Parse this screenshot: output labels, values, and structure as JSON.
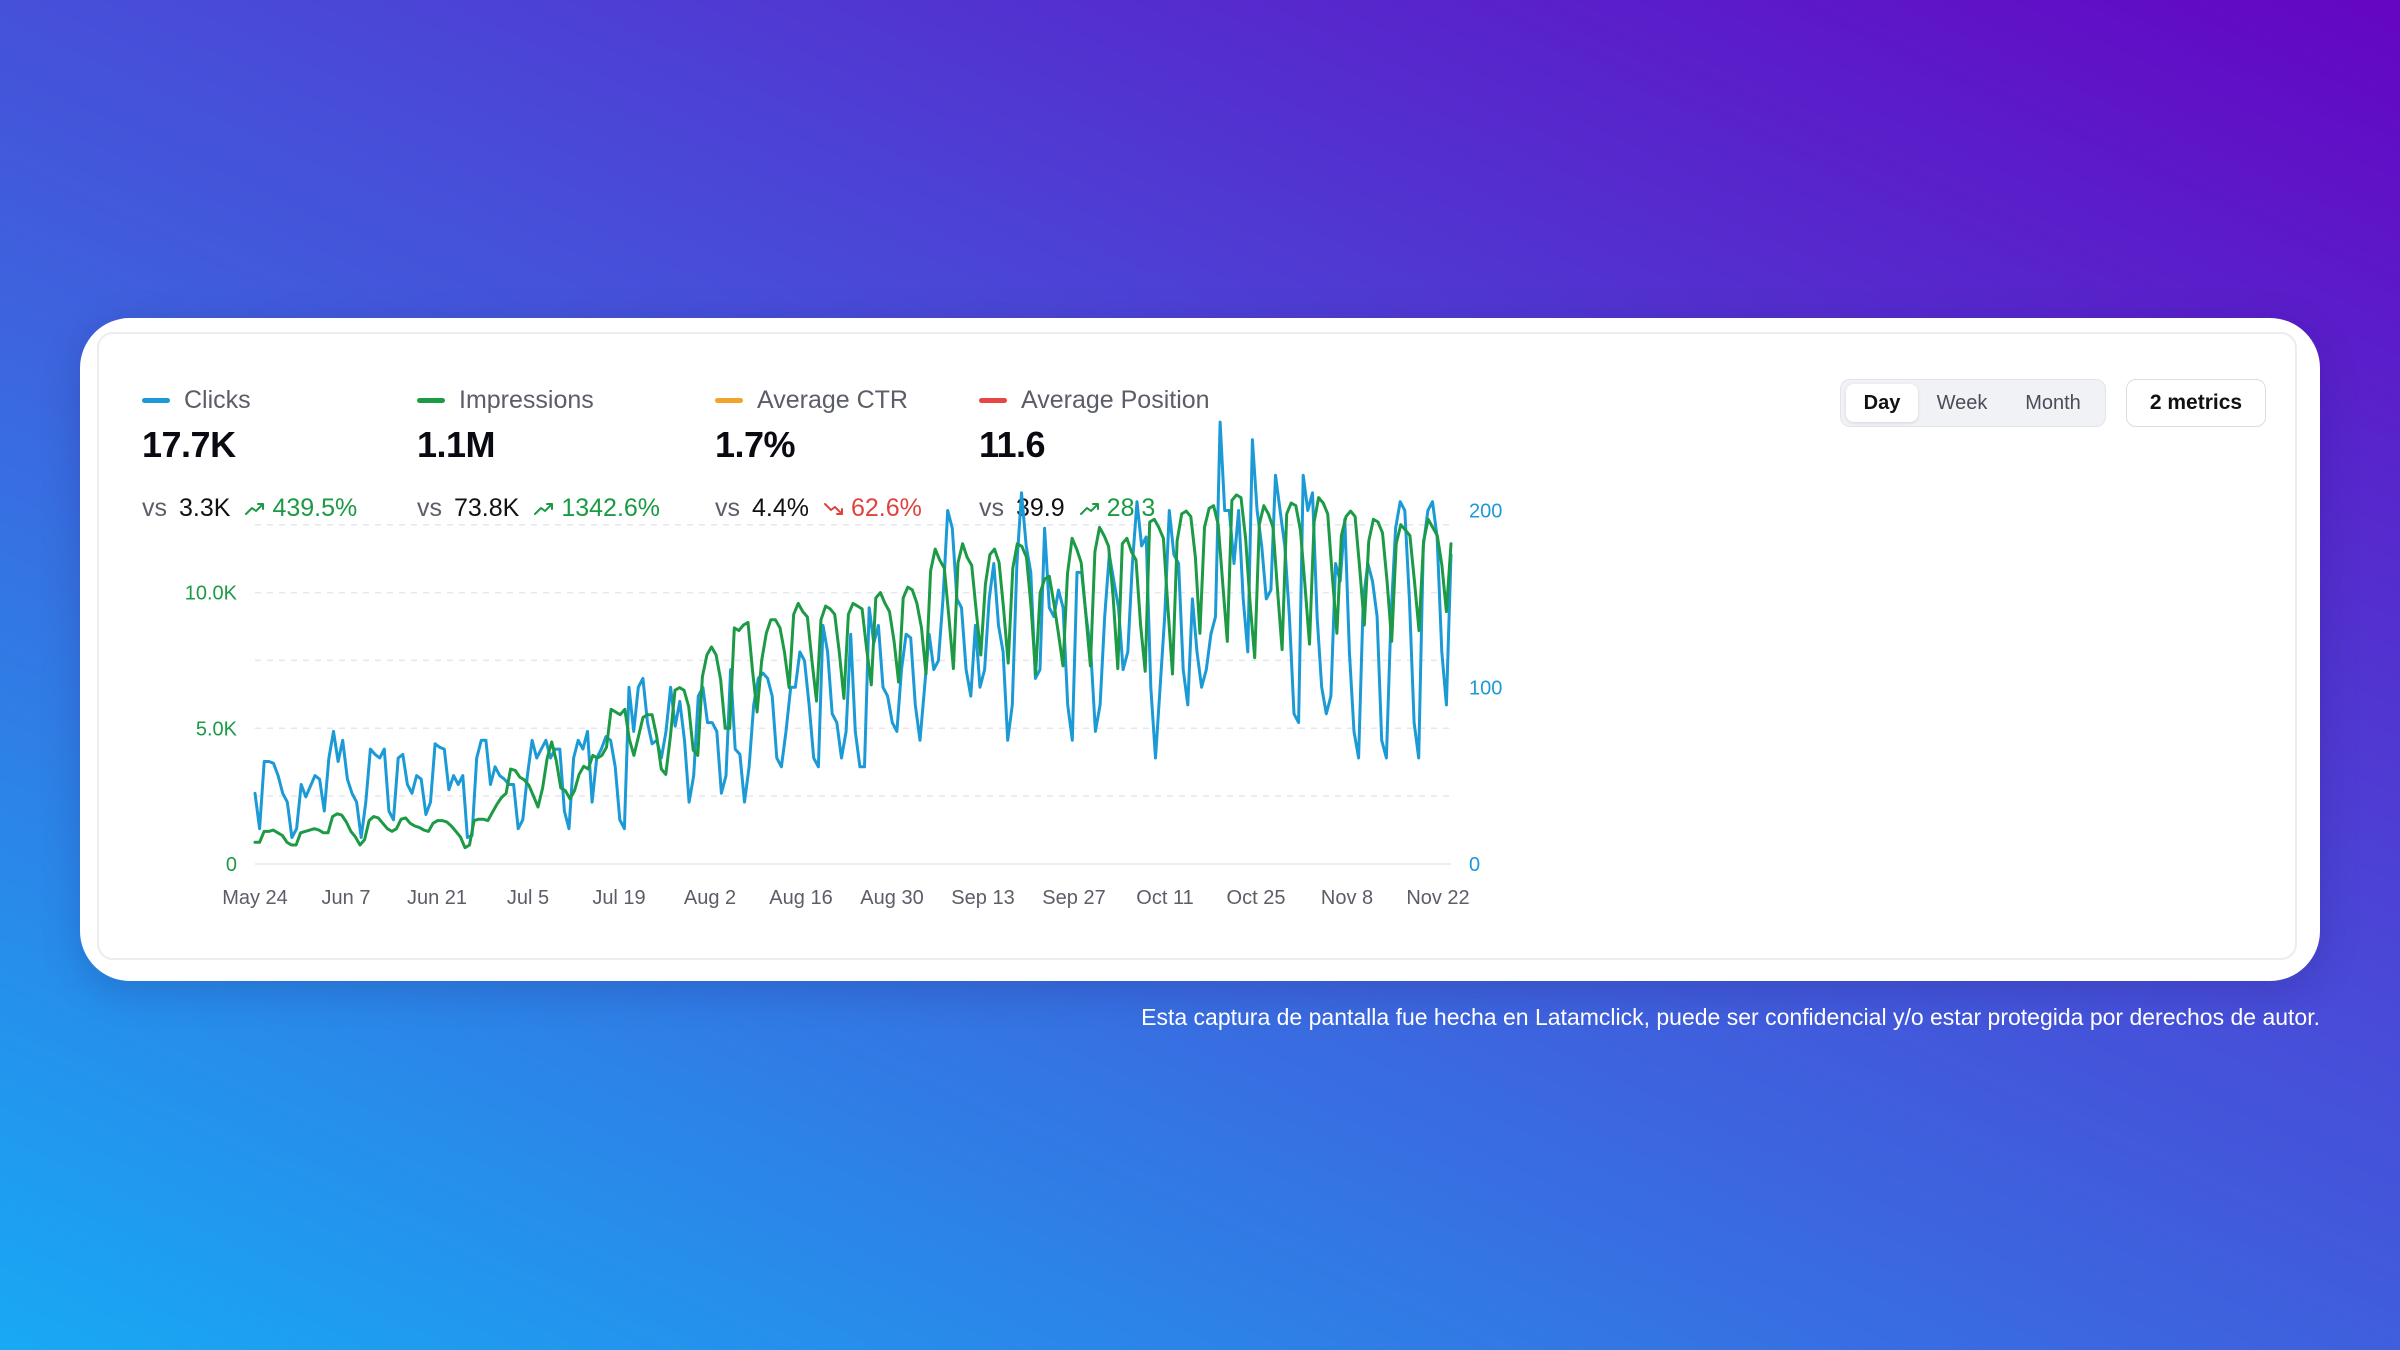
{
  "kpis": [
    {
      "label": "Clicks",
      "color": "#1b9ad6",
      "value": "17.7K",
      "vs": "vs",
      "previous": "3.3K",
      "change": "439.5%",
      "direction": "up"
    },
    {
      "label": "Impressions",
      "color": "#1d9a45",
      "value": "1.1M",
      "vs": "vs",
      "previous": "73.8K",
      "change": "1342.6%",
      "direction": "up"
    },
    {
      "label": "Average CTR",
      "color": "#f0a42a",
      "value": "1.7%",
      "vs": "vs",
      "previous": "4.4%",
      "change": "62.6%",
      "direction": "down"
    },
    {
      "label": "Average Position",
      "color": "#e84545",
      "value": "11.6",
      "vs": "vs",
      "previous": "39.9",
      "change": "28.3",
      "direction": "up"
    }
  ],
  "controls": {
    "period_options": [
      "Day",
      "Week",
      "Month"
    ],
    "active_period": "Day",
    "metrics_button": "2 metrics"
  },
  "colors": {
    "clicks": "#1b9ad6",
    "impressions": "#1d9a45",
    "up": "#1b9a44",
    "down": "#e2423d"
  },
  "footnote": "Esta captura de pantalla fue hecha en Latamclick, puede ser confidencial y/o estar protegida por derechos de autor.",
  "chart_data": {
    "type": "line",
    "x_start": "2023-05-24",
    "x_end": "2023-11-24",
    "x_ticks": [
      "May 24",
      "Jun 7",
      "Jun 21",
      "Jul 5",
      "Jul 19",
      "Aug 2",
      "Aug 16",
      "Aug 30",
      "Sep 13",
      "Sep 27",
      "Oct 11",
      "Oct 25",
      "Nov 8",
      "Nov 22"
    ],
    "left_axis": {
      "ticks": [
        "0",
        "5.0K",
        "10.0K"
      ],
      "values": [
        0,
        5000,
        10000
      ],
      "range": [
        0,
        14000
      ],
      "color": "#1d9a45"
    },
    "right_axis": {
      "ticks": [
        "0",
        "100",
        "200"
      ],
      "values": [
        0,
        100,
        200
      ],
      "range": [
        0,
        215
      ],
      "color": "#1b9ad6"
    },
    "grid": true,
    "series": [
      {
        "name": "Clicks",
        "axis": "right",
        "color": "#1b9ad6",
        "values": [
          40,
          20,
          58,
          58,
          57,
          50,
          40,
          35,
          15,
          20,
          45,
          38,
          44,
          50,
          48,
          30,
          60,
          75,
          58,
          70,
          48,
          40,
          35,
          15,
          35,
          65,
          62,
          60,
          65,
          30,
          25,
          60,
          62,
          45,
          40,
          50,
          48,
          28,
          35,
          68,
          66,
          65,
          42,
          50,
          45,
          50,
          15,
          16,
          60,
          70,
          70,
          45,
          55,
          50,
          48,
          45,
          45,
          20,
          25,
          50,
          70,
          60,
          65,
          70,
          60,
          65,
          65,
          30,
          20,
          60,
          70,
          65,
          75,
          35,
          60,
          65,
          72,
          70,
          55,
          25,
          20,
          100,
          75,
          100,
          105,
          80,
          68,
          70,
          60,
          75,
          100,
          78,
          92,
          70,
          35,
          50,
          95,
          100,
          80,
          80,
          75,
          40,
          50,
          110,
          65,
          62,
          35,
          55,
          90,
          105,
          108,
          105,
          95,
          60,
          55,
          75,
          100,
          100,
          120,
          115,
          90,
          60,
          55,
          135,
          120,
          85,
          80,
          60,
          75,
          130,
          75,
          55,
          55,
          145,
          125,
          135,
          100,
          95,
          80,
          75,
          110,
          130,
          128,
          90,
          70,
          100,
          130,
          110,
          115,
          150,
          200,
          190,
          150,
          145,
          110,
          95,
          135,
          100,
          110,
          150,
          170,
          135,
          120,
          70,
          90,
          170,
          210,
          180,
          165,
          105,
          110,
          190,
          145,
          140,
          155,
          145,
          90,
          70,
          165,
          165,
          140,
          120,
          75,
          90,
          140,
          175,
          160,
          145,
          110,
          120,
          170,
          205,
          180,
          185,
          100,
          60,
          100,
          140,
          200,
          175,
          170,
          110,
          90,
          150,
          120,
          100,
          110,
          130,
          140,
          250,
          200,
          200,
          170,
          200,
          150,
          120,
          240,
          200,
          180,
          150,
          155,
          220,
          200,
          180,
          140,
          85,
          80,
          220,
          200,
          210,
          140,
          100,
          85,
          95,
          170,
          160,
          195,
          120,
          75,
          60,
          150,
          170,
          160,
          140,
          70,
          60,
          140,
          190,
          205,
          200,
          150,
          80,
          60,
          180,
          200,
          205,
          185,
          120,
          90,
          175
        ],
        "note": "daily values are approximate readings of the plotted line"
      },
      {
        "name": "Impressions",
        "axis": "left",
        "color": "#1d9a45",
        "values": [
          800,
          800,
          1200,
          1200,
          1250,
          1150,
          1050,
          800,
          700,
          700,
          1150,
          1200,
          1250,
          1300,
          1250,
          1150,
          1150,
          1750,
          1850,
          1800,
          1550,
          1200,
          1000,
          700,
          900,
          1600,
          1750,
          1700,
          1500,
          1300,
          1200,
          1300,
          1650,
          1700,
          1500,
          1400,
          1350,
          1250,
          1200,
          1500,
          1600,
          1600,
          1550,
          1400,
          1200,
          1000,
          600,
          700,
          1600,
          1650,
          1650,
          1600,
          1900,
          2200,
          2450,
          2600,
          3500,
          3450,
          3200,
          3100,
          2900,
          2500,
          2100,
          2800,
          3900,
          4500,
          3800,
          2800,
          2700,
          2400,
          2700,
          3300,
          3600,
          3500,
          4000,
          3900,
          4000,
          4300,
          5700,
          5600,
          5500,
          5700,
          4600,
          4000,
          4700,
          5400,
          5500,
          5500,
          4700,
          3500,
          3300,
          4700,
          6400,
          6500,
          6400,
          5800,
          4200,
          4000,
          6900,
          7700,
          8000,
          7700,
          6800,
          5000,
          5000,
          8700,
          8600,
          8800,
          8900,
          7100,
          5600,
          7500,
          8500,
          9000,
          9000,
          8700,
          7800,
          6500,
          9200,
          9600,
          9300,
          9100,
          7500,
          6000,
          9000,
          9500,
          9400,
          9200,
          7800,
          6100,
          9200,
          9600,
          9500,
          9400,
          7900,
          6600,
          9800,
          10000,
          9600,
          9300,
          8200,
          6700,
          9800,
          10200,
          10100,
          9600,
          8700,
          7000,
          10800,
          11600,
          11200,
          10900,
          9100,
          7200,
          11100,
          11800,
          11300,
          11000,
          9300,
          7700,
          10300,
          11400,
          11600,
          11100,
          9400,
          7400,
          10900,
          11800,
          11700,
          11300,
          9500,
          7000,
          10000,
          10500,
          10600,
          9600,
          8500,
          7300,
          10700,
          12000,
          11600,
          11100,
          9200,
          7300,
          11500,
          12400,
          12100,
          11700,
          9800,
          7200,
          11800,
          12000,
          11500,
          11200,
          8800,
          7100,
          12600,
          12700,
          12400,
          12000,
          9400,
          7000,
          11900,
          12900,
          13000,
          12800,
          11300,
          8500,
          12400,
          13100,
          13200,
          12500,
          10300,
          8200,
          13400,
          13600,
          13500,
          12000,
          9600,
          7600,
          12500,
          13200,
          12900,
          12400,
          10100,
          7900,
          12900,
          13300,
          13200,
          12300,
          10300,
          8100,
          12600,
          13500,
          13300,
          12900,
          10600,
          8500,
          12100,
          12800,
          13000,
          12800,
          10900,
          8800,
          11900,
          12700,
          12600,
          12200,
          10400,
          8200,
          11800,
          12500,
          12300,
          12100,
          10400,
          8600,
          11900,
          12700,
          12400,
          12100,
          11000,
          9300,
          11800
        ]
      }
    ]
  }
}
